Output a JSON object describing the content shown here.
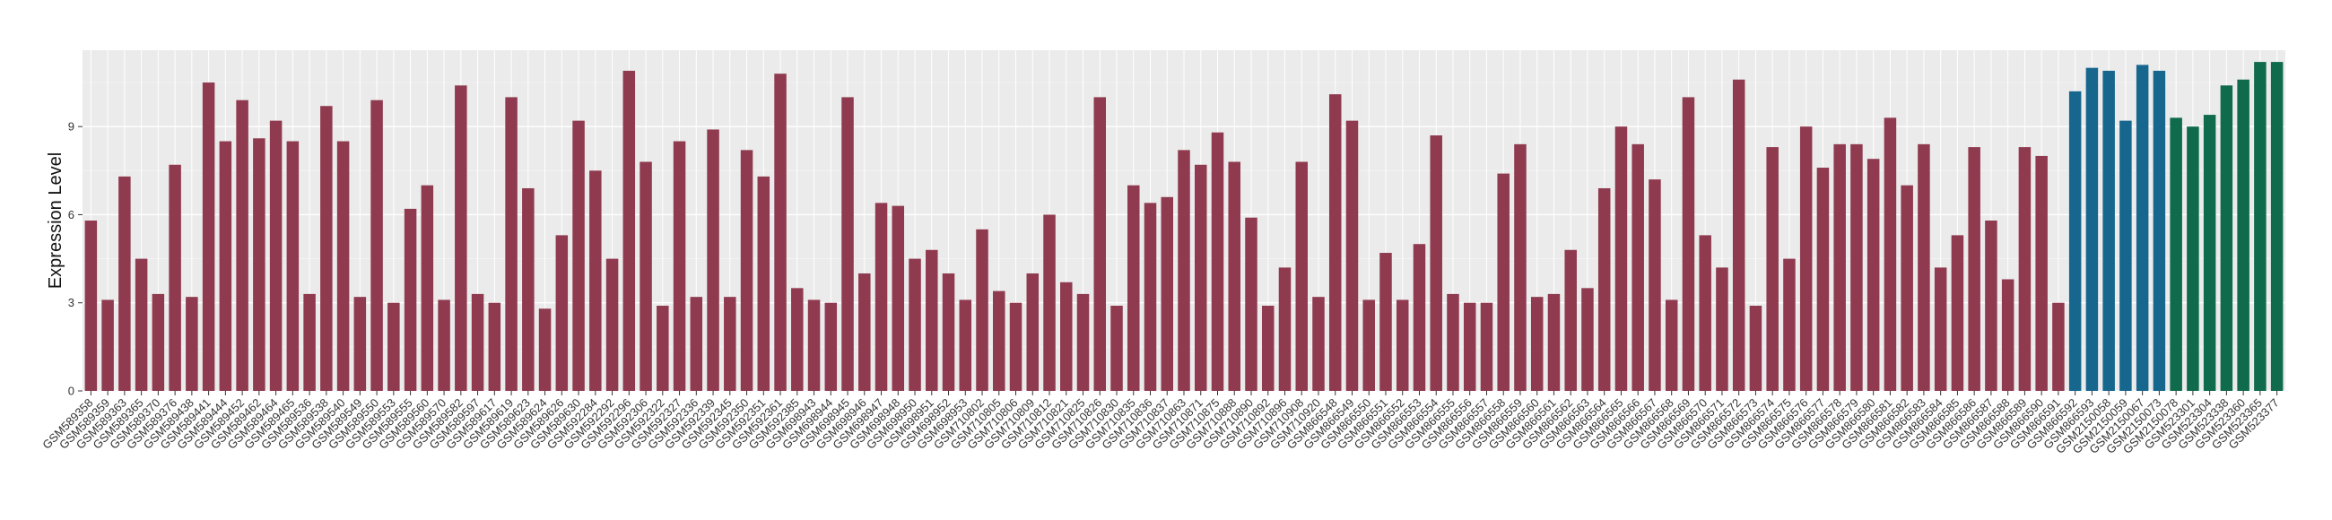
{
  "chart_data": {
    "type": "bar",
    "title": "",
    "xlabel": "",
    "ylabel": "Expression Level",
    "ylim": [
      0,
      11.6
    ],
    "yticks": [
      0,
      3,
      6,
      9
    ],
    "grid": true,
    "legend": "none",
    "colors": {
      "red": "#8f3a4f",
      "blue": "#17668e",
      "green": "#0f6b4b",
      "panel": "#ebebeb",
      "gridline": "#ffffff"
    },
    "bars": [
      {
        "label": "GSM589358",
        "value": 5.8,
        "color": "red"
      },
      {
        "label": "GSM589359",
        "value": 3.1,
        "color": "red"
      },
      {
        "label": "GSM589363",
        "value": 7.3,
        "color": "red"
      },
      {
        "label": "GSM589365",
        "value": 4.5,
        "color": "red"
      },
      {
        "label": "GSM589370",
        "value": 3.3,
        "color": "red"
      },
      {
        "label": "GSM589376",
        "value": 7.7,
        "color": "red"
      },
      {
        "label": "GSM589438",
        "value": 3.2,
        "color": "red"
      },
      {
        "label": "GSM589441",
        "value": 10.5,
        "color": "red"
      },
      {
        "label": "GSM589444",
        "value": 8.5,
        "color": "red"
      },
      {
        "label": "GSM589452",
        "value": 9.9,
        "color": "red"
      },
      {
        "label": "GSM589462",
        "value": 8.6,
        "color": "red"
      },
      {
        "label": "GSM589464",
        "value": 9.2,
        "color": "red"
      },
      {
        "label": "GSM589465",
        "value": 8.5,
        "color": "red"
      },
      {
        "label": "GSM589536",
        "value": 3.3,
        "color": "red"
      },
      {
        "label": "GSM589538",
        "value": 9.7,
        "color": "red"
      },
      {
        "label": "GSM589540",
        "value": 8.5,
        "color": "red"
      },
      {
        "label": "GSM589549",
        "value": 3.2,
        "color": "red"
      },
      {
        "label": "GSM589550",
        "value": 9.9,
        "color": "red"
      },
      {
        "label": "GSM589553",
        "value": 3.0,
        "color": "red"
      },
      {
        "label": "GSM589555",
        "value": 6.2,
        "color": "red"
      },
      {
        "label": "GSM589560",
        "value": 7.0,
        "color": "red"
      },
      {
        "label": "GSM589570",
        "value": 3.1,
        "color": "red"
      },
      {
        "label": "GSM589582",
        "value": 10.4,
        "color": "red"
      },
      {
        "label": "GSM589597",
        "value": 3.3,
        "color": "red"
      },
      {
        "label": "GSM589617",
        "value": 3.0,
        "color": "red"
      },
      {
        "label": "GSM589619",
        "value": 10.0,
        "color": "red"
      },
      {
        "label": "GSM589623",
        "value": 6.9,
        "color": "red"
      },
      {
        "label": "GSM589624",
        "value": 2.8,
        "color": "red"
      },
      {
        "label": "GSM589626",
        "value": 5.3,
        "color": "red"
      },
      {
        "label": "GSM589630",
        "value": 9.2,
        "color": "red"
      },
      {
        "label": "GSM592284",
        "value": 7.5,
        "color": "red"
      },
      {
        "label": "GSM592292",
        "value": 4.5,
        "color": "red"
      },
      {
        "label": "GSM592296",
        "value": 10.9,
        "color": "red"
      },
      {
        "label": "GSM592306",
        "value": 7.8,
        "color": "red"
      },
      {
        "label": "GSM592322",
        "value": 2.9,
        "color": "red"
      },
      {
        "label": "GSM592327",
        "value": 8.5,
        "color": "red"
      },
      {
        "label": "GSM592336",
        "value": 3.2,
        "color": "red"
      },
      {
        "label": "GSM592339",
        "value": 8.9,
        "color": "red"
      },
      {
        "label": "GSM592345",
        "value": 3.2,
        "color": "red"
      },
      {
        "label": "GSM592350",
        "value": 8.2,
        "color": "red"
      },
      {
        "label": "GSM592351",
        "value": 7.3,
        "color": "red"
      },
      {
        "label": "GSM592361",
        "value": 10.8,
        "color": "red"
      },
      {
        "label": "GSM592385",
        "value": 3.5,
        "color": "red"
      },
      {
        "label": "GSM698943",
        "value": 3.1,
        "color": "red"
      },
      {
        "label": "GSM698944",
        "value": 3.0,
        "color": "red"
      },
      {
        "label": "GSM698945",
        "value": 10.0,
        "color": "red"
      },
      {
        "label": "GSM698946",
        "value": 4.0,
        "color": "red"
      },
      {
        "label": "GSM698947",
        "value": 6.4,
        "color": "red"
      },
      {
        "label": "GSM698948",
        "value": 6.3,
        "color": "red"
      },
      {
        "label": "GSM698950",
        "value": 4.5,
        "color": "red"
      },
      {
        "label": "GSM698951",
        "value": 4.8,
        "color": "red"
      },
      {
        "label": "GSM698952",
        "value": 4.0,
        "color": "red"
      },
      {
        "label": "GSM698953",
        "value": 3.1,
        "color": "red"
      },
      {
        "label": "GSM710802",
        "value": 5.5,
        "color": "red"
      },
      {
        "label": "GSM710805",
        "value": 3.4,
        "color": "red"
      },
      {
        "label": "GSM710806",
        "value": 3.0,
        "color": "red"
      },
      {
        "label": "GSM710809",
        "value": 4.0,
        "color": "red"
      },
      {
        "label": "GSM710812",
        "value": 6.0,
        "color": "red"
      },
      {
        "label": "GSM710821",
        "value": 3.7,
        "color": "red"
      },
      {
        "label": "GSM710825",
        "value": 3.3,
        "color": "red"
      },
      {
        "label": "GSM710826",
        "value": 10.0,
        "color": "red"
      },
      {
        "label": "GSM710830",
        "value": 2.9,
        "color": "red"
      },
      {
        "label": "GSM710835",
        "value": 7.0,
        "color": "red"
      },
      {
        "label": "GSM710836",
        "value": 6.4,
        "color": "red"
      },
      {
        "label": "GSM710837",
        "value": 6.6,
        "color": "red"
      },
      {
        "label": "GSM710863",
        "value": 8.2,
        "color": "red"
      },
      {
        "label": "GSM710871",
        "value": 7.7,
        "color": "red"
      },
      {
        "label": "GSM710875",
        "value": 8.8,
        "color": "red"
      },
      {
        "label": "GSM710888",
        "value": 7.8,
        "color": "red"
      },
      {
        "label": "GSM710890",
        "value": 5.9,
        "color": "red"
      },
      {
        "label": "GSM710892",
        "value": 2.9,
        "color": "red"
      },
      {
        "label": "GSM710896",
        "value": 4.2,
        "color": "red"
      },
      {
        "label": "GSM710908",
        "value": 7.8,
        "color": "red"
      },
      {
        "label": "GSM710920",
        "value": 3.2,
        "color": "red"
      },
      {
        "label": "GSM866548",
        "value": 10.1,
        "color": "red"
      },
      {
        "label": "GSM866549",
        "value": 9.2,
        "color": "red"
      },
      {
        "label": "GSM866550",
        "value": 3.1,
        "color": "red"
      },
      {
        "label": "GSM866551",
        "value": 4.7,
        "color": "red"
      },
      {
        "label": "GSM866552",
        "value": 3.1,
        "color": "red"
      },
      {
        "label": "GSM866553",
        "value": 5.0,
        "color": "red"
      },
      {
        "label": "GSM866554",
        "value": 8.7,
        "color": "red"
      },
      {
        "label": "GSM866555",
        "value": 3.3,
        "color": "red"
      },
      {
        "label": "GSM866556",
        "value": 3.0,
        "color": "red"
      },
      {
        "label": "GSM866557",
        "value": 3.0,
        "color": "red"
      },
      {
        "label": "GSM866558",
        "value": 7.4,
        "color": "red"
      },
      {
        "label": "GSM866559",
        "value": 8.4,
        "color": "red"
      },
      {
        "label": "GSM866560",
        "value": 3.2,
        "color": "red"
      },
      {
        "label": "GSM866561",
        "value": 3.3,
        "color": "red"
      },
      {
        "label": "GSM866562",
        "value": 4.8,
        "color": "red"
      },
      {
        "label": "GSM866563",
        "value": 3.5,
        "color": "red"
      },
      {
        "label": "GSM866564",
        "value": 6.9,
        "color": "red"
      },
      {
        "label": "GSM866565",
        "value": 9.0,
        "color": "red"
      },
      {
        "label": "GSM866566",
        "value": 8.4,
        "color": "red"
      },
      {
        "label": "GSM866567",
        "value": 7.2,
        "color": "red"
      },
      {
        "label": "GSM866568",
        "value": 3.1,
        "color": "red"
      },
      {
        "label": "GSM866569",
        "value": 10.0,
        "color": "red"
      },
      {
        "label": "GSM866570",
        "value": 5.3,
        "color": "red"
      },
      {
        "label": "GSM866571",
        "value": 4.2,
        "color": "red"
      },
      {
        "label": "GSM866572",
        "value": 10.6,
        "color": "red"
      },
      {
        "label": "GSM866573",
        "value": 2.9,
        "color": "red"
      },
      {
        "label": "GSM866574",
        "value": 8.3,
        "color": "red"
      },
      {
        "label": "GSM866575",
        "value": 4.5,
        "color": "red"
      },
      {
        "label": "GSM866576",
        "value": 9.0,
        "color": "red"
      },
      {
        "label": "GSM866577",
        "value": 7.6,
        "color": "red"
      },
      {
        "label": "GSM866578",
        "value": 8.4,
        "color": "red"
      },
      {
        "label": "GSM866579",
        "value": 8.4,
        "color": "red"
      },
      {
        "label": "GSM866580",
        "value": 7.9,
        "color": "red"
      },
      {
        "label": "GSM866581",
        "value": 9.3,
        "color": "red"
      },
      {
        "label": "GSM866582",
        "value": 7.0,
        "color": "red"
      },
      {
        "label": "GSM866583",
        "value": 8.4,
        "color": "red"
      },
      {
        "label": "GSM866584",
        "value": 4.2,
        "color": "red"
      },
      {
        "label": "GSM866585",
        "value": 5.3,
        "color": "red"
      },
      {
        "label": "GSM866586",
        "value": 8.3,
        "color": "red"
      },
      {
        "label": "GSM866587",
        "value": 5.8,
        "color": "red"
      },
      {
        "label": "GSM866588",
        "value": 3.8,
        "color": "red"
      },
      {
        "label": "GSM866589",
        "value": 8.3,
        "color": "red"
      },
      {
        "label": "GSM866590",
        "value": 8.0,
        "color": "red"
      },
      {
        "label": "GSM866591",
        "value": 3.0,
        "color": "red"
      },
      {
        "label": "GSM866592",
        "value": 10.2,
        "color": "blue"
      },
      {
        "label": "GSM866593",
        "value": 11.0,
        "color": "blue"
      },
      {
        "label": "GSM2150058",
        "value": 10.9,
        "color": "blue"
      },
      {
        "label": "GSM2150059",
        "value": 9.2,
        "color": "blue"
      },
      {
        "label": "GSM2150067",
        "value": 11.1,
        "color": "blue"
      },
      {
        "label": "GSM2150073",
        "value": 10.9,
        "color": "blue"
      },
      {
        "label": "GSM2150078",
        "value": 9.3,
        "color": "green"
      },
      {
        "label": "GSM523301",
        "value": 9.0,
        "color": "green"
      },
      {
        "label": "GSM523304",
        "value": 9.4,
        "color": "green"
      },
      {
        "label": "GSM523338",
        "value": 10.4,
        "color": "green"
      },
      {
        "label": "GSM523360",
        "value": 10.6,
        "color": "green"
      },
      {
        "label": "GSM523365",
        "value": 11.2,
        "color": "green"
      },
      {
        "label": "GSM523377",
        "value": 11.2,
        "color": "green"
      }
    ]
  }
}
